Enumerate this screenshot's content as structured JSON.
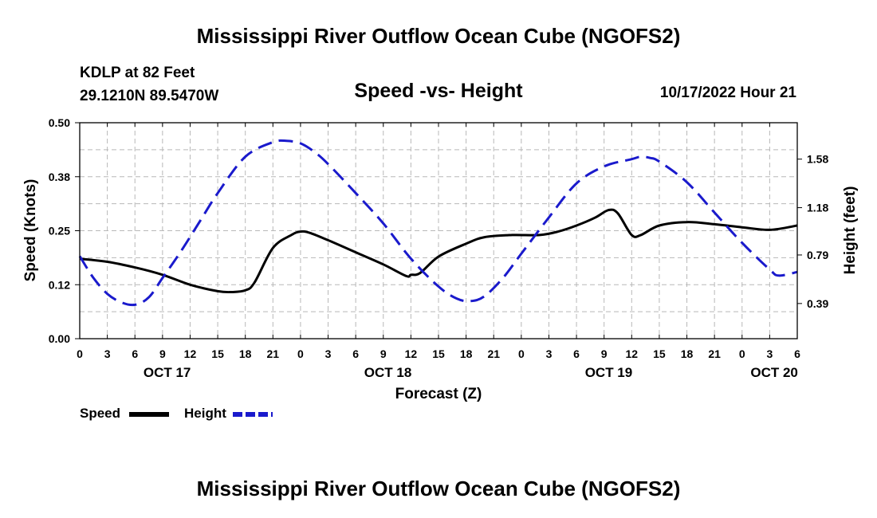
{
  "page": {
    "title": "Mississippi River Outflow Ocean Cube (NGOFS2)",
    "title_repeat": "Mississippi River Outflow Ocean Cube (NGOFS2)",
    "station": "KDLP at 82 Feet",
    "coords": "29.1210N  89.5470W",
    "subtitle": "Speed -vs- Height",
    "datetime": "10/17/2022 Hour 21"
  },
  "colors": {
    "speed": "#000000",
    "height": "#1a1acc",
    "grid": "#b8b8b8"
  },
  "chart_data": {
    "type": "line",
    "xlabel": "Forecast (Z)",
    "ylabel_left": "Speed (Knots)",
    "ylabel_right": "Height (feet)",
    "x_unit": "hours since 00Z Oct 17",
    "xlim": [
      0,
      78
    ],
    "ylim_left": [
      0,
      0.5
    ],
    "ylim_right": [
      0.1,
      1.88
    ],
    "left_ticks": [
      "0.00",
      "0.12",
      "0.25",
      "0.38",
      "0.50"
    ],
    "left_tick_values": [
      0,
      0.125,
      0.25,
      0.375,
      0.5
    ],
    "right_ticks": [
      "0.39",
      "0.79",
      "1.18",
      "1.58"
    ],
    "right_tick_values": [
      0.39,
      0.79,
      1.18,
      1.58
    ],
    "x_tick_labels": [
      "0",
      "3",
      "6",
      "9",
      "12",
      "15",
      "18",
      "21",
      "0",
      "3",
      "6",
      "9",
      "12",
      "15",
      "18",
      "21",
      "0",
      "3",
      "6",
      "9",
      "12",
      "15",
      "18",
      "21",
      "0",
      "3",
      "6"
    ],
    "day_labels": [
      {
        "label": "OCT 17",
        "hour": 9.5
      },
      {
        "label": "OCT 18",
        "hour": 33.5
      },
      {
        "label": "OCT 19",
        "hour": 57.5
      },
      {
        "label": "OCT 20",
        "hour": 75.5
      }
    ],
    "series": [
      {
        "name": "Speed",
        "axis": "left",
        "style": "solid",
        "x": [
          0,
          3,
          6,
          9,
          12,
          15,
          16.5,
          18,
          19,
          21,
          23,
          24,
          25,
          27,
          30,
          33,
          36,
          35.5,
          37,
          39,
          42,
          44,
          47,
          50,
          52,
          54,
          56,
          57.5,
          58.5,
          60,
          61,
          63,
          66,
          69,
          72,
          75,
          78
        ],
        "values": [
          0.185,
          0.178,
          0.165,
          0.148,
          0.125,
          0.11,
          0.108,
          0.112,
          0.13,
          0.21,
          0.24,
          0.248,
          0.245,
          0.228,
          0.2,
          0.172,
          0.148,
          0.145,
          0.152,
          0.19,
          0.22,
          0.235,
          0.24,
          0.24,
          0.248,
          0.262,
          0.28,
          0.298,
          0.29,
          0.24,
          0.24,
          0.262,
          0.27,
          0.265,
          0.258,
          0.252,
          0.262
        ]
      },
      {
        "name": "Height",
        "axis": "right",
        "style": "dashed",
        "x": [
          0,
          1.5,
          3,
          4.5,
          6,
          7.5,
          9,
          11,
          13,
          15,
          18,
          21,
          22.5,
          24,
          25.5,
          27,
          30,
          33,
          36,
          39,
          41,
          42.5,
          44,
          46,
          48,
          51,
          54,
          57,
          60,
          61,
          62,
          63,
          66,
          69,
          72,
          75,
          76,
          78
        ],
        "values": [
          0.78,
          0.6,
          0.47,
          0.4,
          0.38,
          0.44,
          0.6,
          0.82,
          1.06,
          1.3,
          1.6,
          1.72,
          1.73,
          1.71,
          1.64,
          1.54,
          1.3,
          1.05,
          0.76,
          0.53,
          0.43,
          0.41,
          0.45,
          0.6,
          0.8,
          1.1,
          1.38,
          1.52,
          1.58,
          1.6,
          1.59,
          1.56,
          1.39,
          1.14,
          0.89,
          0.67,
          0.62,
          0.65
        ]
      }
    ],
    "legend": {
      "speed_label": "Speed",
      "height_label": "Height",
      "position": "bottom-left"
    }
  }
}
